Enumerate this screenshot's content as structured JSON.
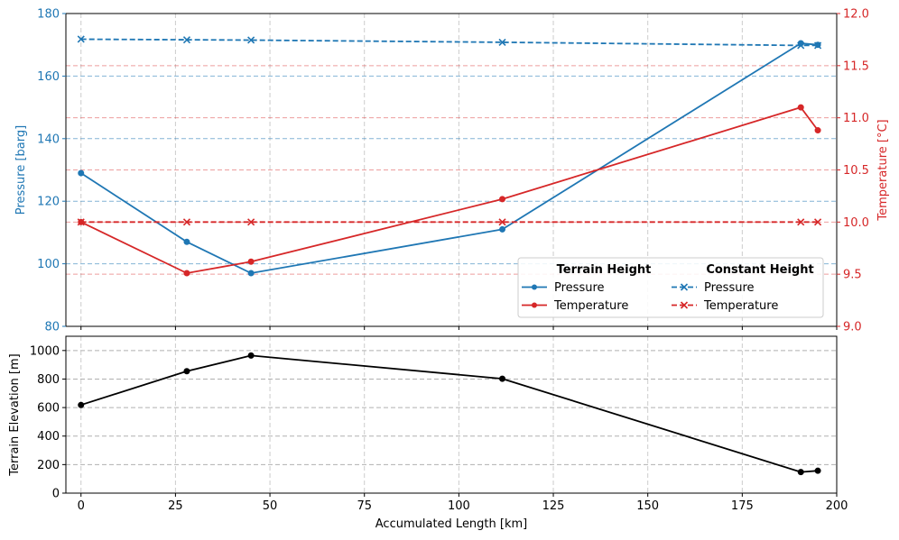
{
  "colors": {
    "pressure": "#1f77b4",
    "temperature": "#d62728",
    "elevation": "#000000"
  },
  "chart_data": [
    {
      "type": "line",
      "panel": "top",
      "xlim": [
        -4,
        200
      ],
      "x_ticks": [
        0,
        25,
        50,
        75,
        100,
        125,
        150,
        175,
        200
      ],
      "ylabel_left": "Pressure [barg]",
      "ylim_left": [
        80,
        180
      ],
      "y_ticks_left": [
        80,
        100,
        120,
        140,
        160,
        180
      ],
      "ylabel_right": "Temperature [°C]",
      "ylim_right": [
        9.0,
        12.0
      ],
      "y_ticks_right": [
        9.0,
        9.5,
        10.0,
        10.5,
        11.0,
        11.5,
        12.0
      ],
      "grid": true,
      "legend_placement": "lower-right",
      "legend": {
        "group_titles": [
          "Terrain Height",
          "Constant Height"
        ],
        "entries": [
          {
            "group": "Terrain Height",
            "label": "Pressure",
            "series": "terrain_pressure"
          },
          {
            "group": "Terrain Height",
            "label": "Temperature",
            "series": "terrain_temperature"
          },
          {
            "group": "Constant Height",
            "label": "Pressure",
            "series": "constant_pressure"
          },
          {
            "group": "Constant Height",
            "label": "Temperature",
            "series": "constant_temperature"
          }
        ]
      },
      "series": [
        {
          "id": "terrain_pressure",
          "axis": "left",
          "style": "solid",
          "marker": "circle",
          "color": "#1f77b4",
          "x": [
            0,
            28,
            45,
            111.5,
            190.5,
            195
          ],
          "y": [
            129,
            107,
            97,
            111,
            170.5,
            170
          ]
        },
        {
          "id": "terrain_temperature",
          "axis": "right",
          "style": "solid",
          "marker": "circle",
          "color": "#d62728",
          "x": [
            0,
            28,
            45,
            111.5,
            190.5,
            195
          ],
          "y": [
            10.0,
            9.51,
            9.62,
            10.22,
            11.1,
            10.88
          ]
        },
        {
          "id": "constant_pressure",
          "axis": "left",
          "style": "dashed",
          "marker": "x",
          "color": "#1f77b4",
          "x": [
            0,
            28,
            45,
            111.5,
            190.5,
            195
          ],
          "y": [
            171.8,
            171.6,
            171.5,
            170.8,
            169.8,
            169.8
          ]
        },
        {
          "id": "constant_temperature",
          "axis": "right",
          "style": "dashed",
          "marker": "x",
          "color": "#d62728",
          "x": [
            0,
            28,
            45,
            111.5,
            190.5,
            195
          ],
          "y": [
            10.0,
            10.0,
            10.0,
            10.0,
            10.0,
            10.0
          ]
        }
      ]
    },
    {
      "type": "line",
      "panel": "bottom",
      "xlabel": "Accumulated Length [km]",
      "xlim": [
        -4,
        200
      ],
      "x_ticks": [
        0,
        25,
        50,
        75,
        100,
        125,
        150,
        175,
        200
      ],
      "ylabel": "Terrain Elevation [m]",
      "ylim": [
        0,
        1100
      ],
      "y_ticks": [
        0,
        200,
        400,
        600,
        800,
        1000
      ],
      "grid": true,
      "series": [
        {
          "id": "elevation",
          "style": "solid",
          "marker": "circle",
          "color": "#000000",
          "x": [
            0,
            28,
            45,
            111.5,
            190.5,
            195
          ],
          "y": [
            618,
            855,
            965,
            802,
            148,
            157
          ]
        }
      ]
    }
  ]
}
